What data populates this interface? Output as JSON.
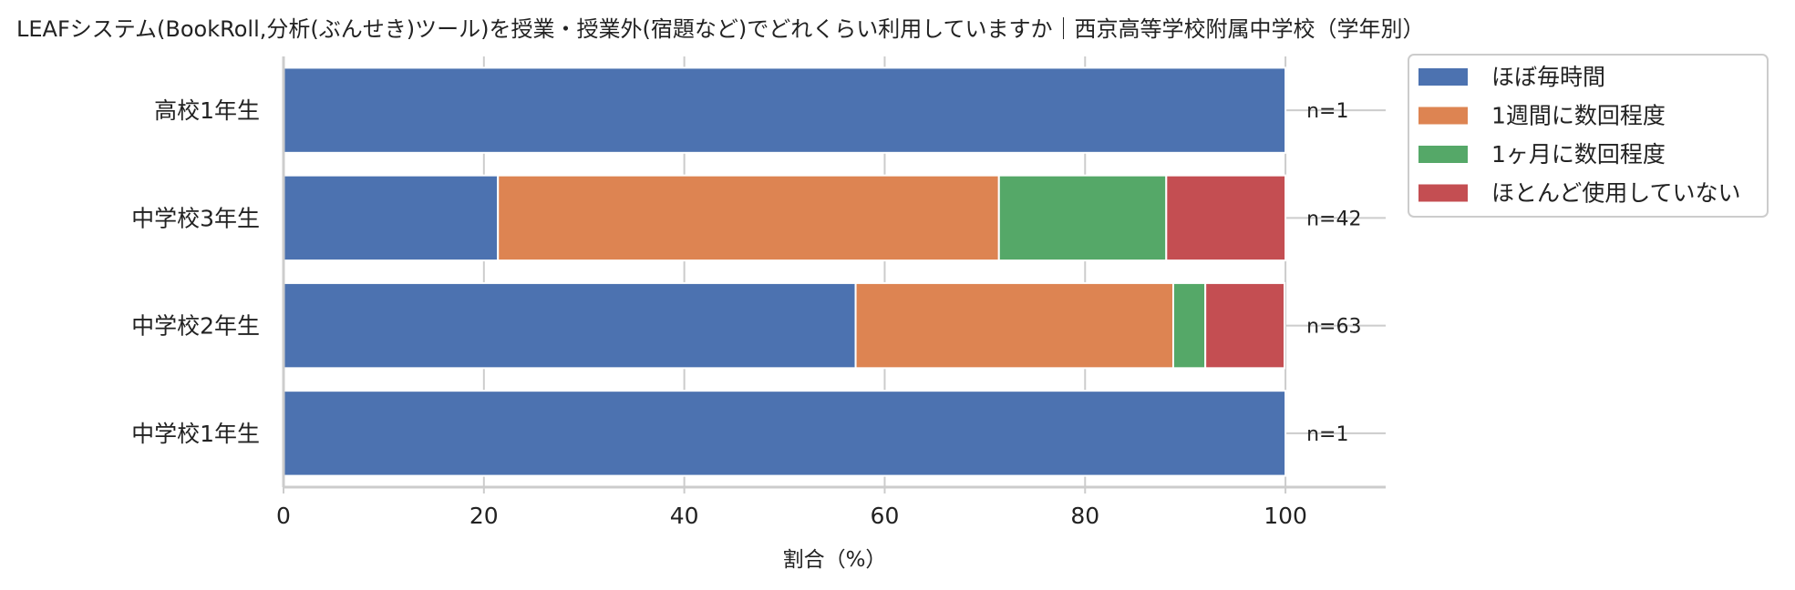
{
  "chart_data": {
    "type": "bar",
    "orientation": "horizontal",
    "stacked": true,
    "title": "LEAFシステム(BookRoll,分析(ぶんせき)ツール)を授業・授業外(宿題など)でどれくらい利用していますか｜西京高等学校附属中学校（学年別）",
    "xlabel": "割合（%）",
    "ylabel": "",
    "xlim": [
      0,
      110
    ],
    "xticks": [
      0,
      20,
      40,
      60,
      80,
      100
    ],
    "grid": "vertical",
    "legend_position": "outside-top-right",
    "categories": [
      "高校1年生",
      "中学校3年生",
      "中学校2年生",
      "中学校1年生"
    ],
    "n_labels": [
      "n=1",
      "n=42",
      "n=63",
      "n=1"
    ],
    "series": [
      {
        "name": "ほぼ毎時間",
        "color": "#4c72b0",
        "values": [
          100,
          21.4,
          57.1,
          100
        ]
      },
      {
        "name": "1週間に数回程度",
        "color": "#dd8452",
        "values": [
          0,
          50.0,
          31.7,
          0
        ]
      },
      {
        "name": "1ヶ月に数回程度",
        "color": "#55a868",
        "values": [
          0,
          16.7,
          3.2,
          0
        ]
      },
      {
        "name": "ほとんど使用していない",
        "color": "#c44e52",
        "values": [
          0,
          11.9,
          7.9,
          0
        ]
      }
    ]
  }
}
